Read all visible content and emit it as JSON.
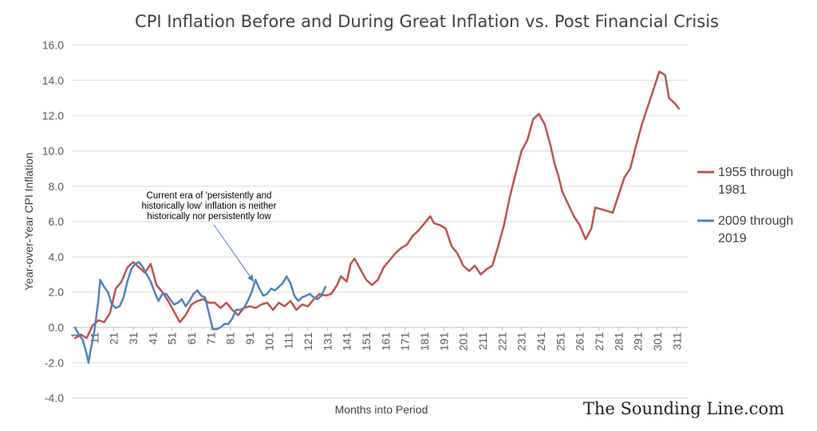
{
  "chart_data": {
    "type": "line",
    "title": "CPI Inflation Before and During Great Inflation vs. Post Financial Crisis",
    "xlabel": "Months into Period",
    "ylabel": "Year-over-Year  CPI Inflation",
    "ylim": [
      -4,
      16
    ],
    "yticks": [
      "-4.0",
      "-2.0",
      "0.0",
      "2.0",
      "4.0",
      "6.0",
      "8.0",
      "10.0",
      "12.0",
      "14.0",
      "16.0"
    ],
    "xlim": [
      1,
      315
    ],
    "xticks": [
      1,
      11,
      21,
      31,
      41,
      51,
      61,
      71,
      81,
      91,
      101,
      111,
      121,
      131,
      141,
      151,
      161,
      171,
      181,
      191,
      201,
      211,
      221,
      231,
      241,
      251,
      261,
      271,
      281,
      291,
      301,
      311
    ],
    "grid": true,
    "legend_position": "right",
    "annotation": {
      "lines": [
        "Current era of 'persistently and",
        "historically low' inflation is neither",
        "historically nor persistently low"
      ],
      "arrow_target": {
        "x": 93,
        "y": 2.6
      }
    },
    "watermark": "The Sounding Line.com",
    "series": [
      {
        "name": "1955 through 1981",
        "legend_lines": [
          "1955 through",
          "1981"
        ],
        "color": "#c0504d",
        "points": [
          [
            1,
            -0.6
          ],
          [
            4,
            -0.4
          ],
          [
            7,
            -0.6
          ],
          [
            10,
            0.1
          ],
          [
            13,
            0.4
          ],
          [
            16,
            0.3
          ],
          [
            19,
            0.8
          ],
          [
            22,
            2.2
          ],
          [
            25,
            2.6
          ],
          [
            28,
            3.4
          ],
          [
            31,
            3.7
          ],
          [
            34,
            3.4
          ],
          [
            37,
            3.1
          ],
          [
            40,
            3.6
          ],
          [
            43,
            2.4
          ],
          [
            46,
            2.0
          ],
          [
            49,
            1.5
          ],
          [
            52,
            0.9
          ],
          [
            55,
            0.3
          ],
          [
            58,
            0.7
          ],
          [
            61,
            1.3
          ],
          [
            64,
            1.5
          ],
          [
            67,
            1.6
          ],
          [
            70,
            1.4
          ],
          [
            73,
            1.4
          ],
          [
            76,
            1.1
          ],
          [
            79,
            1.4
          ],
          [
            82,
            1.0
          ],
          [
            85,
            0.7
          ],
          [
            88,
            1.1
          ],
          [
            91,
            1.2
          ],
          [
            94,
            1.1
          ],
          [
            97,
            1.3
          ],
          [
            100,
            1.4
          ],
          [
            103,
            1.0
          ],
          [
            106,
            1.4
          ],
          [
            109,
            1.2
          ],
          [
            112,
            1.5
          ],
          [
            115,
            1.0
          ],
          [
            118,
            1.3
          ],
          [
            121,
            1.2
          ],
          [
            124,
            1.6
          ],
          [
            127,
            1.9
          ],
          [
            130,
            1.8
          ],
          [
            133,
            1.9
          ],
          [
            136,
            2.4
          ],
          [
            138,
            2.9
          ],
          [
            141,
            2.6
          ],
          [
            143,
            3.6
          ],
          [
            145,
            3.9
          ],
          [
            148,
            3.3
          ],
          [
            151,
            2.7
          ],
          [
            154,
            2.4
          ],
          [
            157,
            2.7
          ],
          [
            160,
            3.4
          ],
          [
            163,
            3.8
          ],
          [
            166,
            4.2
          ],
          [
            169,
            4.5
          ],
          [
            172,
            4.7
          ],
          [
            175,
            5.2
          ],
          [
            178,
            5.5
          ],
          [
            181,
            5.9
          ],
          [
            184,
            6.3
          ],
          [
            186,
            5.9
          ],
          [
            189,
            5.8
          ],
          [
            192,
            5.6
          ],
          [
            195,
            4.6
          ],
          [
            198,
            4.2
          ],
          [
            201,
            3.5
          ],
          [
            204,
            3.2
          ],
          [
            207,
            3.5
          ],
          [
            210,
            3.0
          ],
          [
            213,
            3.3
          ],
          [
            216,
            3.5
          ],
          [
            219,
            4.6
          ],
          [
            222,
            5.8
          ],
          [
            225,
            7.4
          ],
          [
            228,
            8.7
          ],
          [
            231,
            10.0
          ],
          [
            234,
            10.6
          ],
          [
            237,
            11.8
          ],
          [
            240,
            12.1
          ],
          [
            243,
            11.5
          ],
          [
            246,
            10.3
          ],
          [
            248,
            9.3
          ],
          [
            250,
            8.6
          ],
          [
            252,
            7.7
          ],
          [
            255,
            7.0
          ],
          [
            258,
            6.3
          ],
          [
            261,
            5.8
          ],
          [
            264,
            5.0
          ],
          [
            267,
            5.6
          ],
          [
            269,
            6.8
          ],
          [
            272,
            6.7
          ],
          [
            275,
            6.6
          ],
          [
            278,
            6.5
          ],
          [
            281,
            7.5
          ],
          [
            284,
            8.5
          ],
          [
            287,
            9.0
          ],
          [
            290,
            10.3
          ],
          [
            293,
            11.5
          ],
          [
            296,
            12.5
          ],
          [
            299,
            13.5
          ],
          [
            302,
            14.5
          ],
          [
            305,
            14.3
          ],
          [
            307,
            13.0
          ],
          [
            310,
            12.7
          ],
          [
            312,
            12.4
          ]
        ]
      },
      {
        "name": "2009 through 2019",
        "legend_lines": [
          "2009 through",
          "2019"
        ],
        "color": "#4f81bd",
        "points": [
          [
            1,
            0.0
          ],
          [
            3,
            -0.4
          ],
          [
            5,
            -0.7
          ],
          [
            7,
            -1.5
          ],
          [
            8,
            -2.0
          ],
          [
            9,
            -1.3
          ],
          [
            11,
            -0.2
          ],
          [
            13,
            1.5
          ],
          [
            14,
            2.7
          ],
          [
            16,
            2.3
          ],
          [
            18,
            2.0
          ],
          [
            20,
            1.3
          ],
          [
            22,
            1.1
          ],
          [
            24,
            1.2
          ],
          [
            26,
            1.7
          ],
          [
            28,
            2.6
          ],
          [
            30,
            3.3
          ],
          [
            32,
            3.6
          ],
          [
            34,
            3.7
          ],
          [
            36,
            3.4
          ],
          [
            38,
            3.0
          ],
          [
            40,
            2.6
          ],
          [
            42,
            2.0
          ],
          [
            44,
            1.5
          ],
          [
            46,
            1.9
          ],
          [
            48,
            1.9
          ],
          [
            50,
            1.6
          ],
          [
            52,
            1.3
          ],
          [
            54,
            1.4
          ],
          [
            56,
            1.6
          ],
          [
            58,
            1.2
          ],
          [
            60,
            1.5
          ],
          [
            62,
            1.9
          ],
          [
            64,
            2.1
          ],
          [
            66,
            1.8
          ],
          [
            68,
            1.7
          ],
          [
            70,
            0.8
          ],
          [
            72,
            -0.1
          ],
          [
            74,
            -0.1
          ],
          [
            76,
            0.0
          ],
          [
            78,
            0.2
          ],
          [
            80,
            0.2
          ],
          [
            82,
            0.5
          ],
          [
            84,
            1.0
          ],
          [
            86,
            1.0
          ],
          [
            88,
            1.1
          ],
          [
            90,
            1.5
          ],
          [
            92,
            2.0
          ],
          [
            94,
            2.7
          ],
          [
            96,
            2.2
          ],
          [
            98,
            1.8
          ],
          [
            100,
            1.9
          ],
          [
            102,
            2.2
          ],
          [
            104,
            2.1
          ],
          [
            106,
            2.3
          ],
          [
            108,
            2.5
          ],
          [
            110,
            2.9
          ],
          [
            112,
            2.5
          ],
          [
            114,
            1.8
          ],
          [
            116,
            1.5
          ],
          [
            118,
            1.7
          ],
          [
            120,
            1.8
          ],
          [
            122,
            1.9
          ],
          [
            124,
            1.7
          ],
          [
            126,
            1.6
          ],
          [
            128,
            1.8
          ],
          [
            130,
            2.3
          ]
        ]
      }
    ]
  }
}
